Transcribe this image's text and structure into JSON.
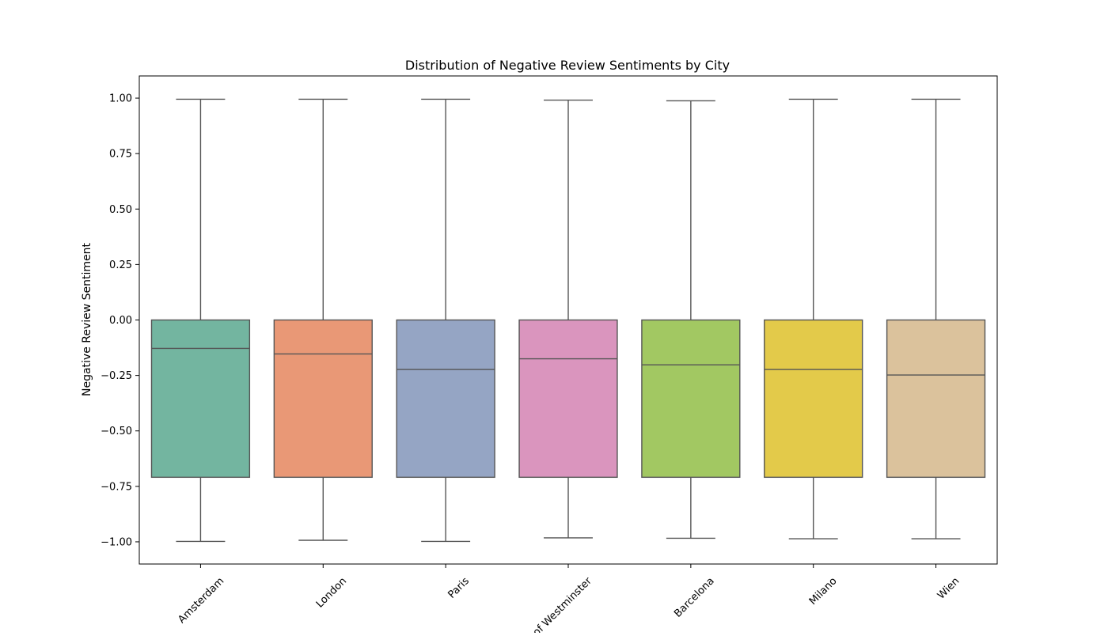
{
  "chart_data": {
    "type": "box",
    "title": "Distribution of Negative Review Sentiments by City",
    "xlabel": "",
    "ylabel": "Negative Review Sentiment",
    "ylim": [
      -1.1,
      1.1
    ],
    "yticks": [
      1.0,
      0.75,
      0.5,
      0.25,
      0.0,
      -0.25,
      -0.5,
      -0.75,
      -1.0
    ],
    "ytick_labels": [
      "1.00",
      "0.75",
      "0.50",
      "0.25",
      "0.00",
      "−0.25",
      "−0.50",
      "−0.75",
      "−1.00"
    ],
    "grid": false,
    "legend": "none",
    "categories": [
      "Amsterdam",
      "London",
      "Paris",
      "of Westminster",
      "Barcelona",
      "Milano",
      "Wien"
    ],
    "boxes": [
      {
        "label": "Amsterdam",
        "whisker_low": -0.998,
        "q1": -0.709,
        "median": -0.128,
        "q3": 0.0,
        "whisker_high": 0.995,
        "color": "#73b5a0"
      },
      {
        "label": "London",
        "whisker_low": -0.993,
        "q1": -0.709,
        "median": -0.153,
        "q3": 0.0,
        "whisker_high": 0.995,
        "color": "#e99876"
      },
      {
        "label": "Paris",
        "whisker_low": -0.998,
        "q1": -0.709,
        "median": -0.223,
        "q3": 0.0,
        "whisker_high": 0.995,
        "color": "#95a5c4"
      },
      {
        "label": "of Westminster",
        "whisker_low": -0.982,
        "q1": -0.709,
        "median": -0.175,
        "q3": 0.0,
        "whisker_high": 0.991,
        "color": "#da95be"
      },
      {
        "label": "Barcelona",
        "whisker_low": -0.984,
        "q1": -0.709,
        "median": -0.202,
        "q3": 0.0,
        "whisker_high": 0.988,
        "color": "#a2c862"
      },
      {
        "label": "Milano",
        "whisker_low": -0.986,
        "q1": -0.709,
        "median": -0.223,
        "q3": 0.0,
        "whisker_high": 0.995,
        "color": "#e3ca4a"
      },
      {
        "label": "Wien",
        "whisker_low": -0.986,
        "q1": -0.709,
        "median": -0.248,
        "q3": 0.0,
        "whisker_high": 0.995,
        "color": "#dbc29c"
      }
    ]
  }
}
